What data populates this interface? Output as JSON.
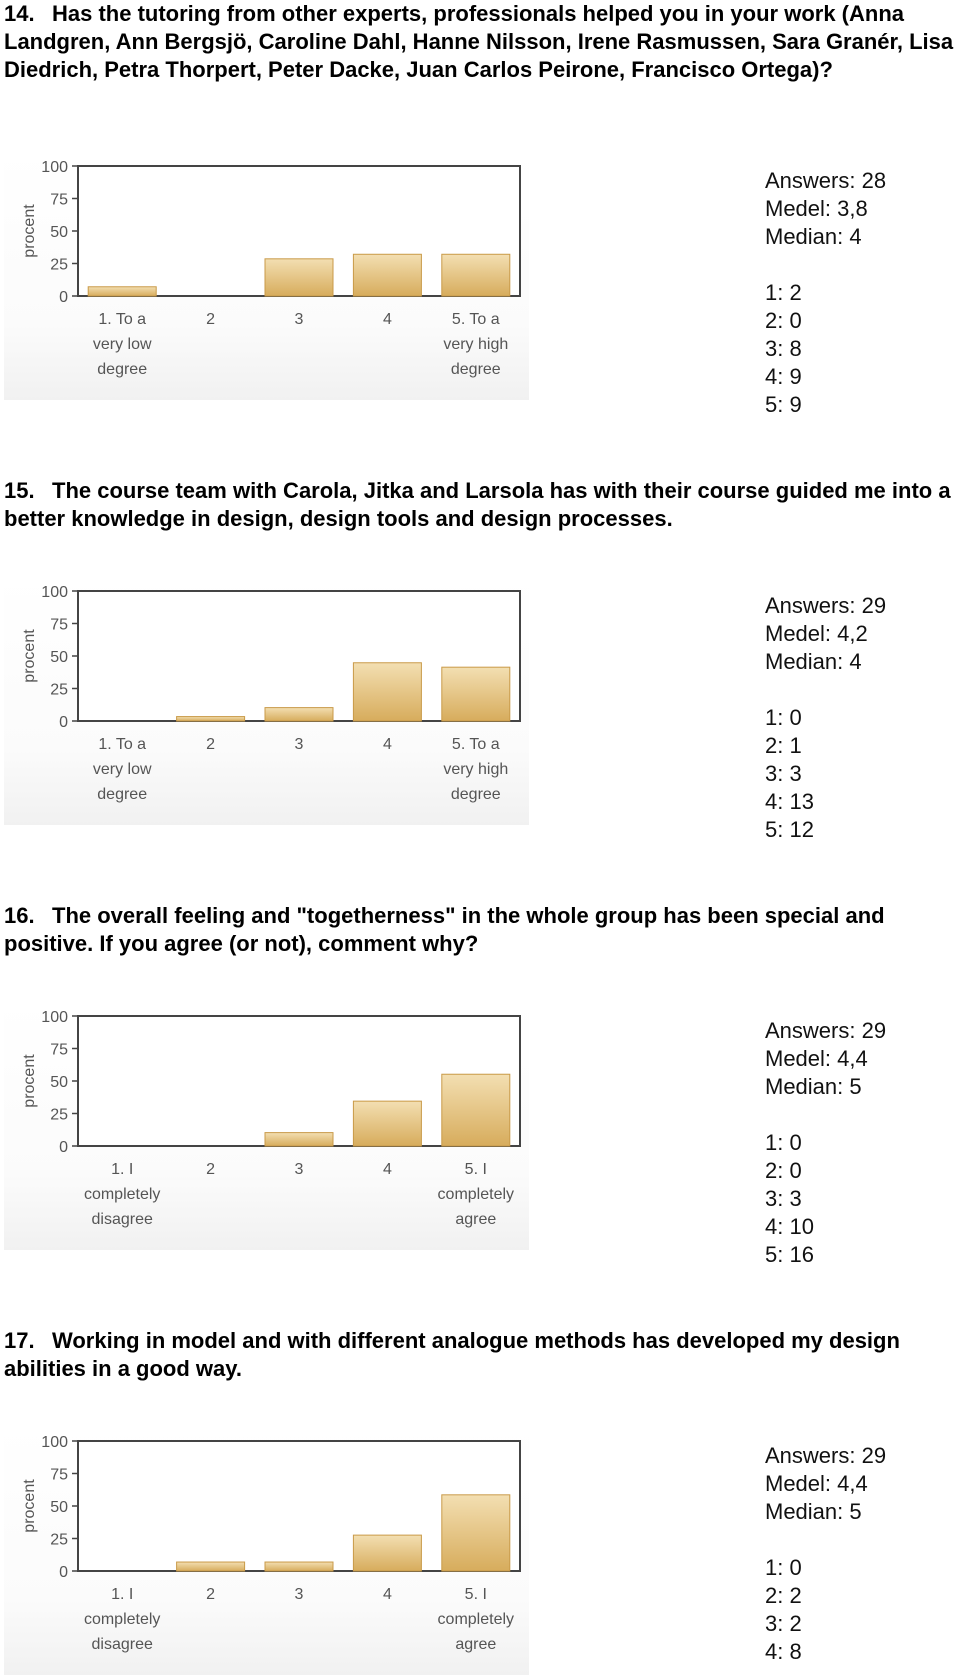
{
  "questions": [
    {
      "number": "14.",
      "text": "Has the tutoring from other experts, professionals helped you in your work (Anna Landgren, Ann Bergsjö, Caroline Dahl, Hanne Nilsson, Irene Rasmussen, Sara Granér, Lisa Diedrich, Petra Thorpert, Peter Dacke, Juan Carlos Peirone, Francisco Ortega)?",
      "stats": [
        "Answers: 28",
        "Medel: 3,8",
        "Median: 4",
        "",
        "1: 2",
        "2: 0",
        "3: 8",
        "4: 9",
        "5: 9"
      ]
    },
    {
      "number": "15.",
      "text": "The course team with Carola, Jitka and Larsola has with their course guided me into a better knowledge in design, design tools and design processes.",
      "stats": [
        "Answers: 29",
        "Medel: 4,2",
        "Median: 4",
        "",
        "1: 0",
        "2: 1",
        "3: 3",
        "4: 13",
        "5: 12"
      ]
    },
    {
      "number": "16.",
      "text": "The overall feeling and \"togetherness\" in the whole group has been special and positive. If you agree (or not), comment why?",
      "stats": [
        "Answers: 29",
        "Medel: 4,4",
        "Median: 5",
        "",
        "1: 0",
        "2: 0",
        "3: 3",
        "4: 10",
        "5: 16"
      ]
    },
    {
      "number": "17.",
      "text": "Working in model and with different analogue methods has developed my design abilities in a good way.",
      "stats": [
        "Answers: 29",
        "Medel: 4,4",
        "Median: 5",
        "",
        "1: 0",
        "2: 2",
        "3: 2",
        "4: 8"
      ]
    }
  ],
  "chart_data": [
    {
      "type": "bar",
      "ylabel": "procent",
      "ylim": [
        0,
        100
      ],
      "yticks": [
        "100",
        "75",
        "50",
        "25",
        "0"
      ],
      "categories": [
        [
          "1. To a",
          "very low",
          "degree"
        ],
        [
          "2"
        ],
        [
          "3"
        ],
        [
          "4"
        ],
        [
          "5. To a",
          "very high",
          "degree"
        ]
      ],
      "values": [
        7.1,
        0,
        28.6,
        32.1,
        32.1
      ]
    },
    {
      "type": "bar",
      "ylabel": "procent",
      "ylim": [
        0,
        100
      ],
      "yticks": [
        "100",
        "75",
        "50",
        "25",
        "0"
      ],
      "categories": [
        [
          "1. To a",
          "very low",
          "degree"
        ],
        [
          "2"
        ],
        [
          "3"
        ],
        [
          "4"
        ],
        [
          "5. To a",
          "very high",
          "degree"
        ]
      ],
      "values": [
        0,
        3.4,
        10.3,
        44.8,
        41.4
      ]
    },
    {
      "type": "bar",
      "ylabel": "procent",
      "ylim": [
        0,
        100
      ],
      "yticks": [
        "100",
        "75",
        "50",
        "25",
        "0"
      ],
      "categories": [
        [
          "1. I",
          "completely",
          "disagree"
        ],
        [
          "2"
        ],
        [
          "3"
        ],
        [
          "4"
        ],
        [
          "5. I",
          "completely",
          "agree"
        ]
      ],
      "values": [
        0,
        0,
        10.3,
        34.5,
        55.2
      ]
    },
    {
      "type": "bar",
      "ylabel": "procent",
      "ylim": [
        0,
        100
      ],
      "yticks": [
        "100",
        "75",
        "50",
        "25",
        "0"
      ],
      "categories": [
        [
          "1. I",
          "completely",
          "disagree"
        ],
        [
          "2"
        ],
        [
          "3"
        ],
        [
          "4"
        ],
        [
          "5. I",
          "completely",
          "agree"
        ]
      ],
      "values": [
        0,
        6.9,
        6.9,
        27.6,
        58.6
      ]
    }
  ],
  "colors": {
    "bar_top": "#f3dfb2",
    "bar_bottom": "#d7ac5c",
    "bar_edge": "#c99a48",
    "plot_border": "#444444",
    "axis_text": "#555555"
  }
}
